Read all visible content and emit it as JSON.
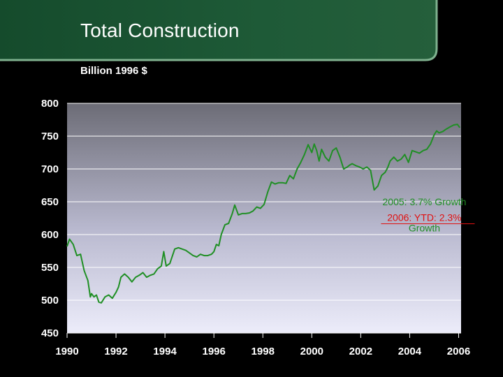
{
  "slide": {
    "title": "Total Construction",
    "unit_label": "Billion 1996 $",
    "colors": {
      "header_green": "#1e5a37",
      "header_border": "#7fb28f",
      "line_green": "#1f8f24",
      "annotation_red": "#e01010",
      "annotation_green": "#1f8f24"
    }
  },
  "chart_data": {
    "type": "line",
    "title": "",
    "ylabel": "Billion 1996 $",
    "xlabel": "",
    "xlim": [
      1990,
      2006.1
    ],
    "ylim": [
      450,
      800
    ],
    "x_ticks": [
      1990,
      1992,
      1994,
      1996,
      1998,
      2000,
      2002,
      2004,
      2006
    ],
    "y_ticks": [
      450,
      500,
      550,
      600,
      650,
      700,
      750,
      800
    ],
    "grid": "horizontal",
    "legend": "none",
    "series": [
      {
        "name": "",
        "color": "#1f8f24",
        "x": [
          1990.0,
          1990.1,
          1990.25,
          1990.4,
          1990.55,
          1990.7,
          1990.85,
          1990.95,
          1991.0,
          1991.1,
          1991.2,
          1991.3,
          1991.4,
          1991.55,
          1991.7,
          1991.85,
          1992.0,
          1992.1,
          1992.2,
          1992.35,
          1992.5,
          1992.65,
          1992.8,
          1992.95,
          1993.1,
          1993.25,
          1993.4,
          1993.55,
          1993.7,
          1993.85,
          1993.95,
          1994.05,
          1994.2,
          1994.4,
          1994.55,
          1994.7,
          1994.85,
          1995.0,
          1995.15,
          1995.3,
          1995.45,
          1995.6,
          1995.75,
          1995.9,
          1996.0,
          1996.1,
          1996.2,
          1996.3,
          1996.45,
          1996.6,
          1996.75,
          1996.85,
          1997.0,
          1997.15,
          1997.3,
          1997.45,
          1997.6,
          1997.75,
          1997.9,
          1998.05,
          1998.2,
          1998.35,
          1998.5,
          1998.65,
          1998.8,
          1998.95,
          1999.1,
          1999.25,
          1999.4,
          1999.55,
          1999.7,
          1999.85,
          2000.0,
          2000.1,
          2000.2,
          2000.3,
          2000.4,
          2000.55,
          2000.7,
          2000.85,
          2001.0,
          2001.15,
          2001.3,
          2001.45,
          2001.55,
          2001.65,
          2001.8,
          2001.95,
          2002.1,
          2002.25,
          2002.4,
          2002.55,
          2002.7,
          2002.85,
          2003.0,
          2003.1,
          2003.2,
          2003.35,
          2003.5,
          2003.65,
          2003.8,
          2003.95,
          2004.1,
          2004.25,
          2004.4,
          2004.55,
          2004.7,
          2004.85,
          2005.0,
          2005.1,
          2005.2,
          2005.35,
          2005.5,
          2005.65,
          2005.8,
          2005.95,
          2006.05
        ],
        "y": [
          582,
          593,
          585,
          568,
          570,
          545,
          530,
          505,
          510,
          505,
          508,
          497,
          496,
          505,
          508,
          503,
          512,
          520,
          535,
          540,
          535,
          528,
          535,
          538,
          542,
          535,
          538,
          540,
          548,
          552,
          574,
          552,
          556,
          578,
          580,
          578,
          576,
          572,
          568,
          566,
          570,
          568,
          568,
          570,
          574,
          585,
          583,
          600,
          615,
          617,
          632,
          645,
          630,
          632,
          632,
          633,
          636,
          642,
          640,
          646,
          665,
          680,
          677,
          679,
          679,
          678,
          690,
          685,
          700,
          710,
          722,
          737,
          725,
          738,
          728,
          712,
          730,
          718,
          712,
          728,
          732,
          718,
          700,
          703,
          706,
          708,
          705,
          703,
          700,
          703,
          698,
          668,
          674,
          690,
          695,
          702,
          712,
          718,
          712,
          715,
          722,
          710,
          728,
          726,
          724,
          728,
          730,
          738,
          752,
          758,
          755,
          757,
          761,
          764,
          767,
          768,
          763
        ]
      }
    ],
    "annotations": [
      {
        "text": "2005: 3.7% Growth",
        "color": "#1f8f24",
        "x": 2004.6,
        "y": 650
      },
      {
        "text": "2006: YTD: 2.3%",
        "color": "#e01010",
        "x": 2004.6,
        "y": 626
      },
      {
        "text": "Growth",
        "color": "#1f8f24",
        "x": 2004.6,
        "y": 610
      }
    ]
  }
}
